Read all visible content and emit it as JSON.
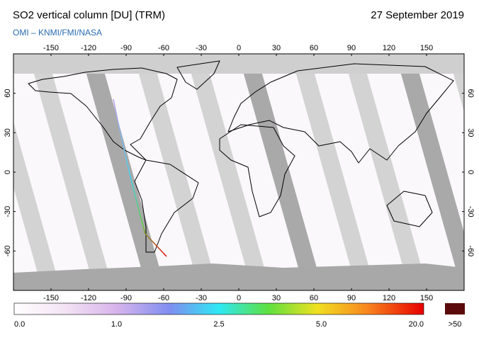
{
  "header": {
    "title": "SO2 vertical column [DU] (TRM)",
    "date": "27 September 2019",
    "source": "OMI  –  KNMI/FMI/NASA"
  },
  "map": {
    "lon_range": [
      -180,
      180
    ],
    "lat_range": [
      -90,
      90
    ],
    "lon_ticks": [
      -150,
      -120,
      -90,
      -60,
      -30,
      0,
      30,
      60,
      90,
      120,
      150
    ],
    "lat_ticks": [
      -60,
      -30,
      0,
      30,
      60
    ]
  },
  "colorbar": {
    "labels": [
      "0.0",
      "1.0",
      "2.5",
      "5.0",
      "20.0"
    ],
    "overflow_label": ">50"
  }
}
